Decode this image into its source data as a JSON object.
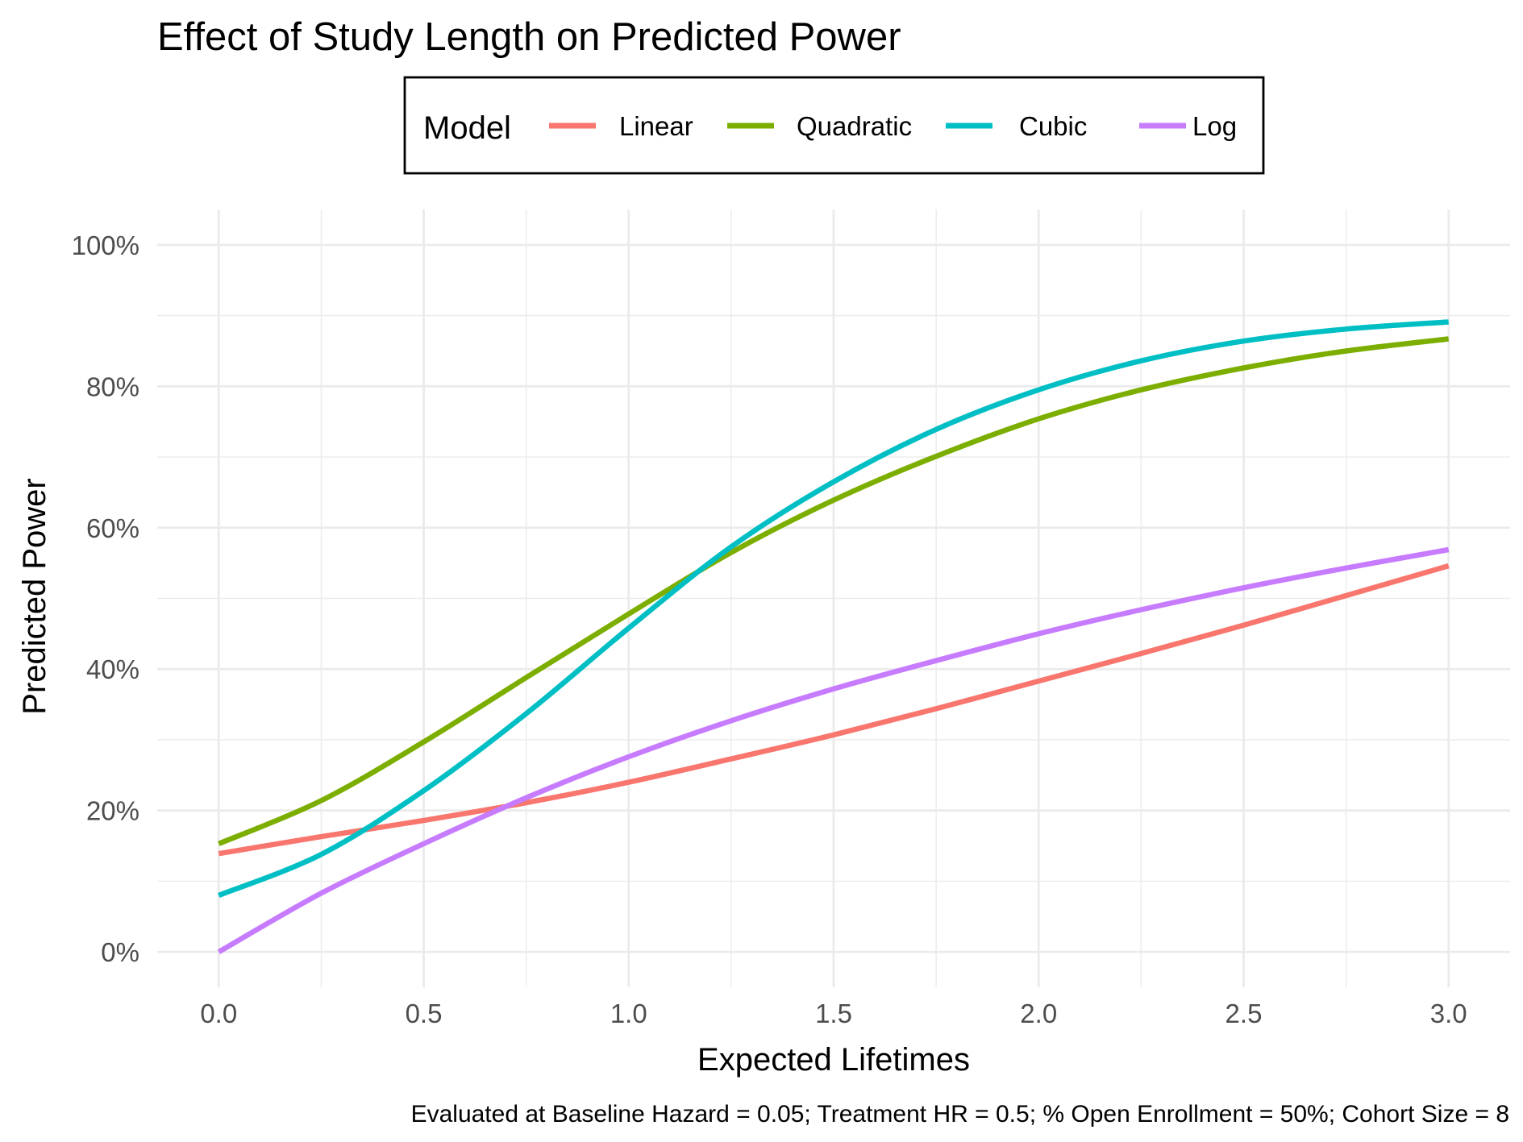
{
  "chart_data": {
    "type": "line",
    "title": "Effect of Study Length on Predicted Power",
    "xlabel": "Expected Lifetimes",
    "ylabel": "Predicted Power",
    "caption": "Evaluated at Baseline Hazard = 0.05; Treatment HR = 0.5; % Open Enrollment = 50%; Cohort Size = 8",
    "xlim": [
      -0.15,
      3.15
    ],
    "ylim": [
      -0.05,
      1.05
    ],
    "x_ticks": [
      0.0,
      0.5,
      1.0,
      1.5,
      2.0,
      2.5,
      3.0
    ],
    "x_tick_labels": [
      "0.0",
      "0.5",
      "1.0",
      "1.5",
      "2.0",
      "2.5",
      "3.0"
    ],
    "y_ticks": [
      0,
      0.2,
      0.4,
      0.6,
      0.8,
      1.0
    ],
    "y_tick_labels": [
      "0%",
      "20%",
      "40%",
      "60%",
      "80%",
      "100%"
    ],
    "grid": true,
    "legend": {
      "title": "Model",
      "position": "top"
    },
    "x": [
      0,
      0.25,
      0.5,
      0.75,
      1.0,
      1.25,
      1.5,
      1.75,
      2.0,
      2.25,
      2.5,
      2.75,
      3.0
    ],
    "series": [
      {
        "name": "Linear",
        "color": "#F8766D",
        "values": [
          0.139,
          0.163,
          0.186,
          0.211,
          0.24,
          0.273,
          0.307,
          0.344,
          0.383,
          0.422,
          0.462,
          0.504,
          0.546
        ]
      },
      {
        "name": "Quadratic",
        "color": "#7CAE00",
        "values": [
          0.153,
          0.214,
          0.297,
          0.388,
          0.478,
          0.565,
          0.639,
          0.701,
          0.754,
          0.795,
          0.826,
          0.85,
          0.867
        ]
      },
      {
        "name": "Cubic",
        "color": "#00BFC4",
        "values": [
          0.08,
          0.138,
          0.228,
          0.337,
          0.458,
          0.573,
          0.665,
          0.739,
          0.795,
          0.836,
          0.864,
          0.881,
          0.891
        ]
      },
      {
        "name": "Log",
        "color": "#C77CFF",
        "values": [
          0.0,
          0.083,
          0.153,
          0.218,
          0.276,
          0.327,
          0.372,
          0.412,
          0.45,
          0.484,
          0.515,
          0.543,
          0.569
        ]
      }
    ]
  }
}
